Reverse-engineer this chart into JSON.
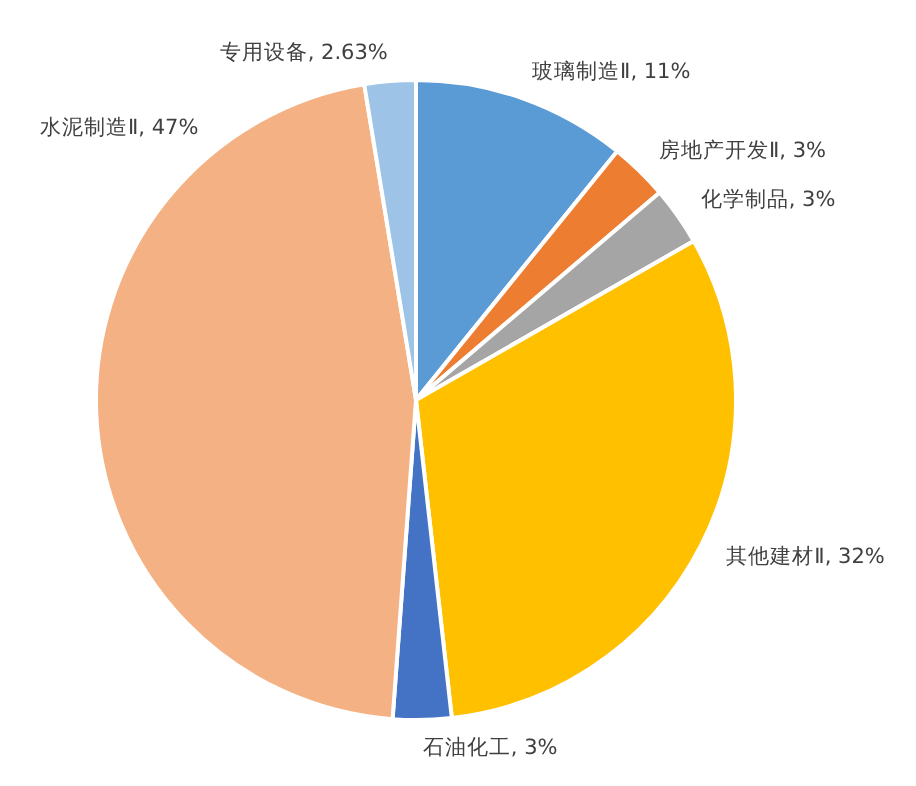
{
  "chart_data": {
    "type": "pie",
    "categories": [
      "玻璃制造Ⅱ",
      "房地产开发Ⅱ",
      "化学制品",
      "其他建材Ⅱ",
      "石油化工",
      "水泥制造Ⅱ",
      "专用设备"
    ],
    "values": [
      11,
      3,
      3,
      32,
      3,
      47,
      2.63
    ],
    "value_labels": [
      "11%",
      "3%",
      "3%",
      "32%",
      "3%",
      "47%",
      "2.63%"
    ],
    "colors": [
      "#5b9bd5",
      "#ed7d31",
      "#a5a5a5",
      "#ffc000",
      "#4472c4",
      "#f4b183",
      "#9dc3e6"
    ]
  }
}
